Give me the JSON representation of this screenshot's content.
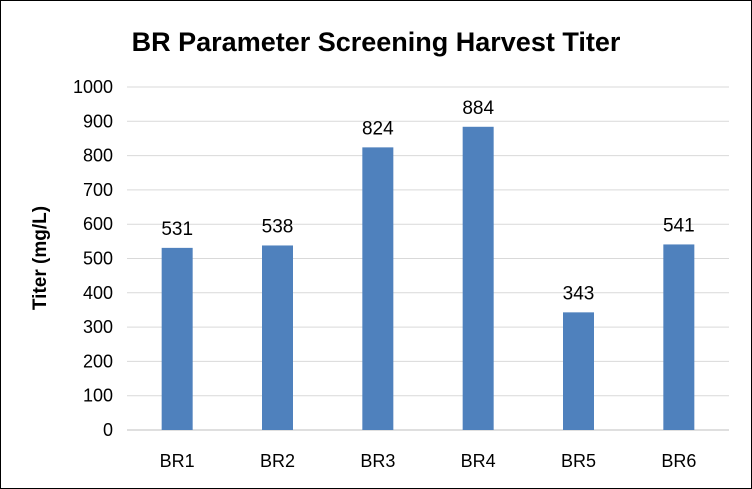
{
  "chart_data": {
    "type": "bar",
    "title": "BR Parameter Screening Harvest Titer",
    "xlabel": "",
    "ylabel": "Titer (mg/L)",
    "categories": [
      "BR1",
      "BR2",
      "BR3",
      "BR4",
      "BR5",
      "BR6"
    ],
    "values": [
      531,
      538,
      824,
      884,
      343,
      541
    ],
    "ylim": [
      0,
      1000
    ],
    "yticks": [
      "0",
      "100",
      "200",
      "300",
      "400",
      "500",
      "600",
      "700",
      "800",
      "900",
      "1000"
    ],
    "grid": true,
    "legend": "none",
    "bar_color": "#4f81bd"
  }
}
